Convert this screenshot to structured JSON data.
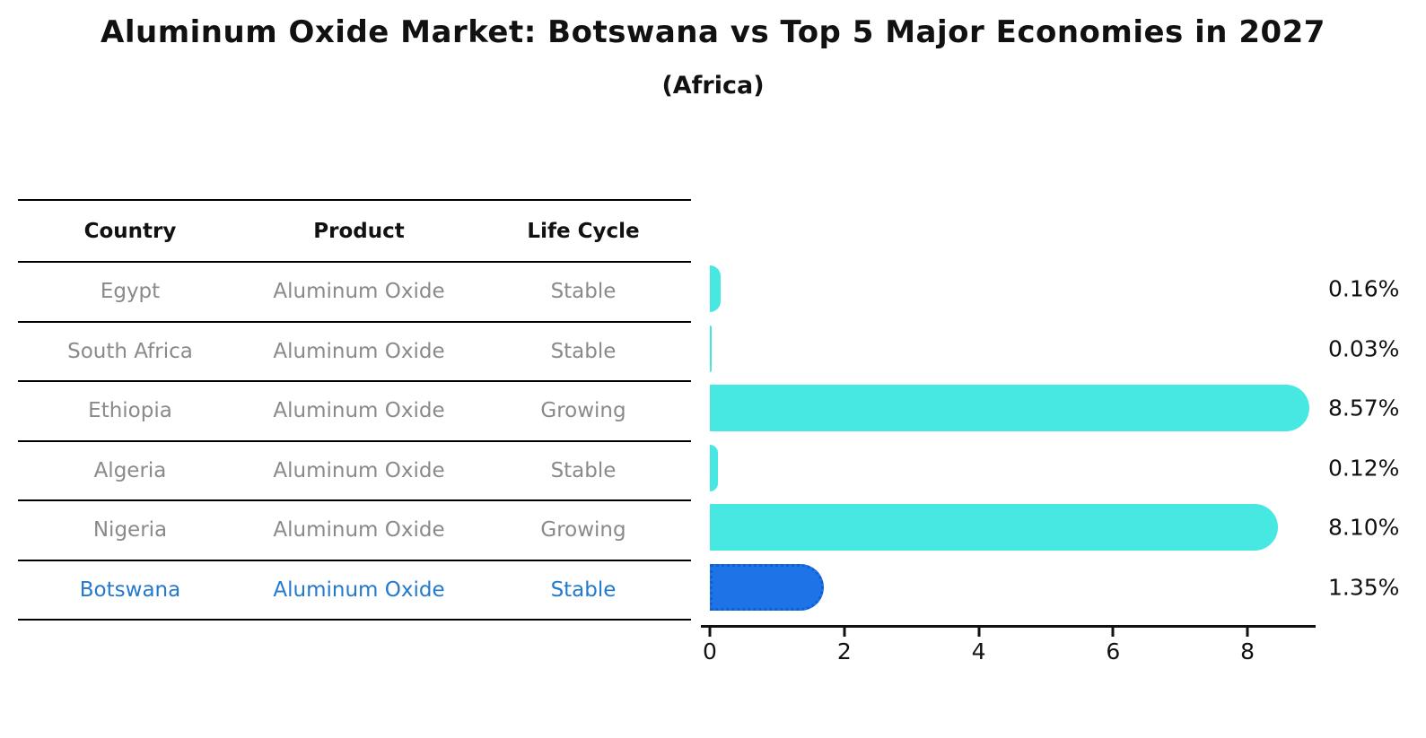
{
  "title": "Aluminum Oxide Market: Botswana vs Top 5 Major Economies in 2027",
  "subtitle": "(Africa)",
  "table": {
    "headers": [
      "Country",
      "Product",
      "Life Cycle"
    ],
    "rows": [
      {
        "country": "Egypt",
        "product": "Aluminum Oxide",
        "life_cycle": "Stable"
      },
      {
        "country": "South Africa",
        "product": "Aluminum Oxide",
        "life_cycle": "Stable"
      },
      {
        "country": "Ethiopia",
        "product": "Aluminum Oxide",
        "life_cycle": "Growing"
      },
      {
        "country": "Algeria",
        "product": "Aluminum Oxide",
        "life_cycle": "Stable"
      },
      {
        "country": "Nigeria",
        "product": "Aluminum Oxide",
        "life_cycle": "Growing"
      },
      {
        "country": "Botswana",
        "product": "Aluminum Oxide",
        "life_cycle": "Stable"
      }
    ],
    "highlight_row": "Botswana"
  },
  "chart_data": {
    "type": "bar",
    "orientation": "horizontal",
    "title": "Aluminum Oxide Market: Botswana vs Top 5 Major Economies in 2027 (Africa)",
    "categories": [
      "Egypt",
      "South Africa",
      "Ethiopia",
      "Algeria",
      "Nigeria",
      "Botswana"
    ],
    "values": [
      0.16,
      0.03,
      8.57,
      0.12,
      8.1,
      1.35
    ],
    "value_labels": [
      "0.16%",
      "0.03%",
      "8.57%",
      "0.12%",
      "8.10%",
      "1.35%"
    ],
    "xlabel": "",
    "ylabel": "",
    "xlim": [
      0,
      9
    ],
    "xticks": [
      0,
      2,
      4,
      6,
      8
    ],
    "xtick_labels": [
      "0",
      "2",
      "4",
      "6",
      "8"
    ],
    "grid": false,
    "legend": "none",
    "bar_color": "#46e8e1",
    "highlight_color": "#1e73e6",
    "highlight_index": 5
  },
  "colors": {
    "bar_default": "#46e8e1",
    "bar_highlight": "#1e73e6",
    "highlight_text": "#2379cd",
    "table_text": "#8a8a8a",
    "axis": "#111111"
  }
}
